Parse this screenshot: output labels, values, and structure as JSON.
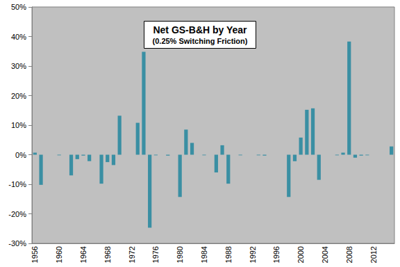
{
  "chart_data": {
    "type": "bar",
    "title": "Net GS-B&H by Year",
    "subtitle": "(0.25% Switching Friction)",
    "categories": [
      "1956",
      null,
      null,
      null,
      "1960",
      null,
      null,
      null,
      "1964",
      null,
      null,
      null,
      "1968",
      null,
      null,
      null,
      "1972",
      null,
      null,
      null,
      "1976",
      null,
      null,
      null,
      "1980",
      null,
      null,
      null,
      "1984",
      null,
      null,
      null,
      "1988",
      null,
      null,
      null,
      "1992",
      null,
      null,
      null,
      "1996",
      null,
      null,
      null,
      "2000",
      null,
      null,
      null,
      "2004",
      null,
      null,
      null,
      "2008",
      null,
      null,
      null,
      "2012",
      null,
      null,
      null
    ],
    "values": [
      0.7,
      -10.2,
      0,
      0,
      -0.2,
      0,
      -7.0,
      -1.5,
      -0.3,
      -2.2,
      0,
      -9.8,
      -2.5,
      -3.5,
      13.2,
      0,
      0,
      10.8,
      34.8,
      -24.7,
      -0.2,
      0,
      -0.3,
      0,
      -14.3,
      8.5,
      4.0,
      0,
      -0.2,
      0,
      -6.0,
      3.2,
      -9.8,
      0,
      -0.2,
      0,
      0,
      -0.2,
      -0.3,
      0,
      0,
      0,
      -14.3,
      -2.2,
      5.8,
      15.2,
      15.7,
      -8.5,
      0,
      0,
      -0.2,
      0.7,
      38.3,
      -1.0,
      -0.3,
      -0.2,
      0,
      0,
      0,
      2.8
    ],
    "color": "#3a8fa3",
    "ylim": [
      -30,
      50
    ],
    "yticks": [
      {
        "value": -30,
        "label": "-30%"
      },
      {
        "value": -20,
        "label": "-20%"
      },
      {
        "value": -10,
        "label": "-10%"
      },
      {
        "value": 0,
        "label": "0%"
      },
      {
        "value": 10,
        "label": "10%"
      },
      {
        "value": 20,
        "label": "20%"
      },
      {
        "value": 30,
        "label": "30%"
      },
      {
        "value": 40,
        "label": "40%"
      },
      {
        "value": 50,
        "label": "50%"
      }
    ],
    "grid": false
  }
}
